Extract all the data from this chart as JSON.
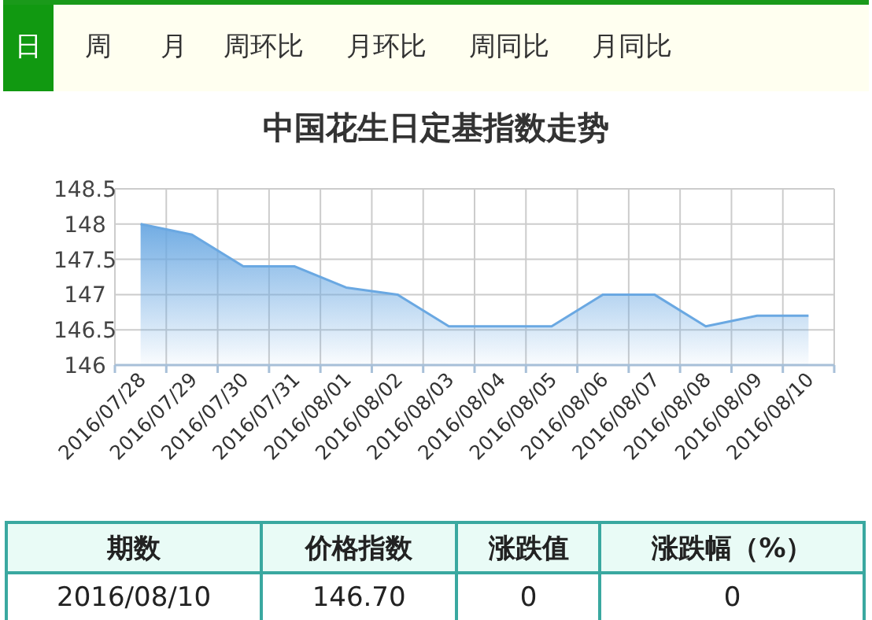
{
  "chart_data": [
    {
      "type": "other",
      "annotations": [
        "日",
        "周",
        "月",
        "周环比",
        "月环比",
        "周同比",
        "月同比"
      ]
    },
    {
      "type": "area",
      "title": "中国花生日定基指数走势",
      "categories": [
        "2016/07/28",
        "2016/07/29",
        "2016/07/30",
        "2016/07/31",
        "2016/08/01",
        "2016/08/02",
        "2016/08/03",
        "2016/08/04",
        "2016/08/05",
        "2016/08/06",
        "2016/08/07",
        "2016/08/08",
        "2016/08/09",
        "2016/08/10"
      ],
      "series": [
        {
          "color": "#6aa8e2",
          "values": [
            148.0,
            147.85,
            147.4,
            147.4,
            147.1,
            147.0,
            146.55,
            146.55,
            146.55,
            147.0,
            147.0,
            146.55,
            146.7,
            146.7
          ]
        }
      ],
      "ylim": [
        146,
        148.5
      ],
      "yticks": [
        146,
        146.5,
        147,
        147.5,
        148,
        148.5
      ],
      "grid": true
    },
    {
      "type": "other",
      "annotations": [
        "期数",
        "价格指数",
        "涨跌值",
        "涨跌幅（%）",
        "2016/08/10",
        "146.70",
        "0",
        "0"
      ]
    }
  ]
}
